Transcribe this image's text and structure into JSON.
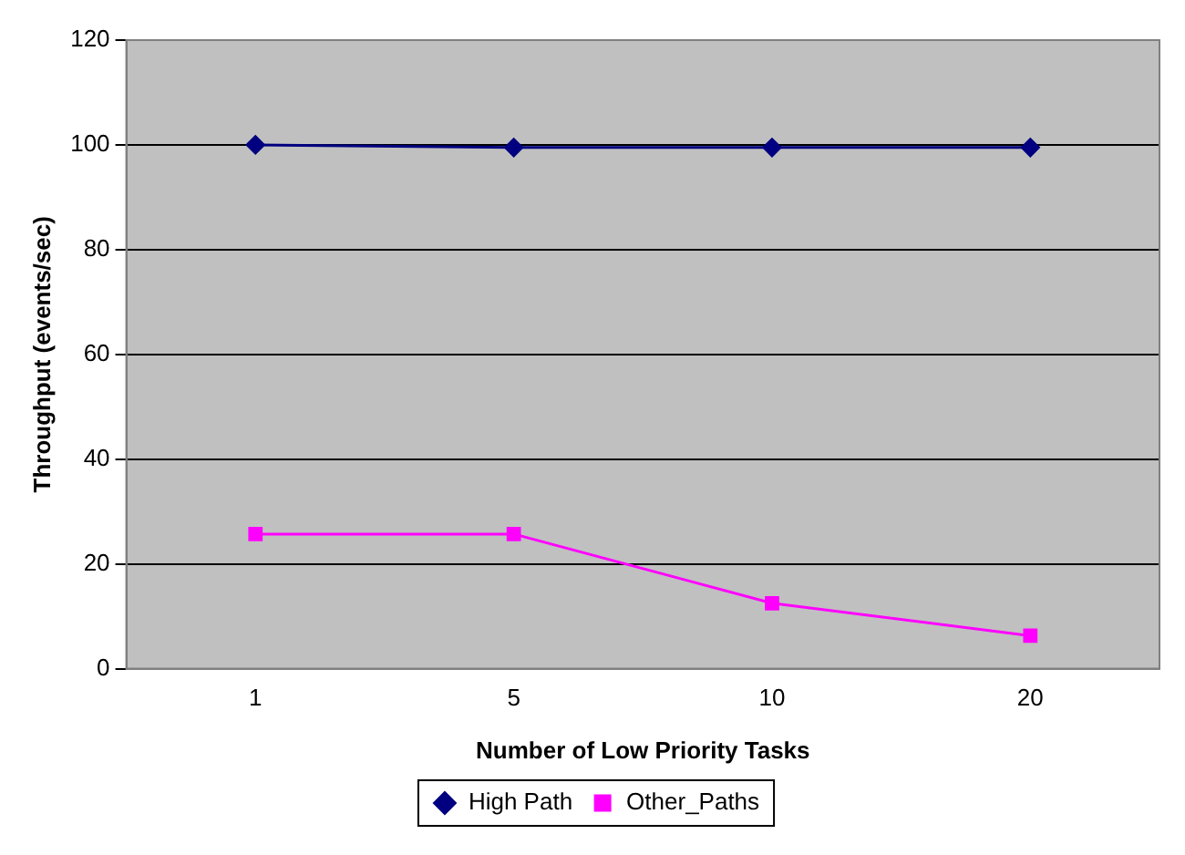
{
  "chart_data": {
    "type": "line",
    "xlabel": "Number of Low Priority Tasks",
    "ylabel": "Throughput (events/sec)",
    "categories": [
      "1",
      "5",
      "10",
      "20"
    ],
    "series": [
      {
        "name": "High Path",
        "color": "#000080",
        "marker": "diamond",
        "values": [
          100,
          99.5,
          99.5,
          99.5
        ]
      },
      {
        "name": "Other_Paths",
        "color": "#ff00ff",
        "marker": "square",
        "values": [
          25.7,
          25.7,
          12.5,
          6.3
        ]
      }
    ],
    "ylim": [
      0,
      120
    ],
    "yticks": [
      0,
      20,
      40,
      60,
      80,
      100,
      120
    ],
    "grid": "y",
    "legend": "bottom",
    "line_style": "solid"
  }
}
